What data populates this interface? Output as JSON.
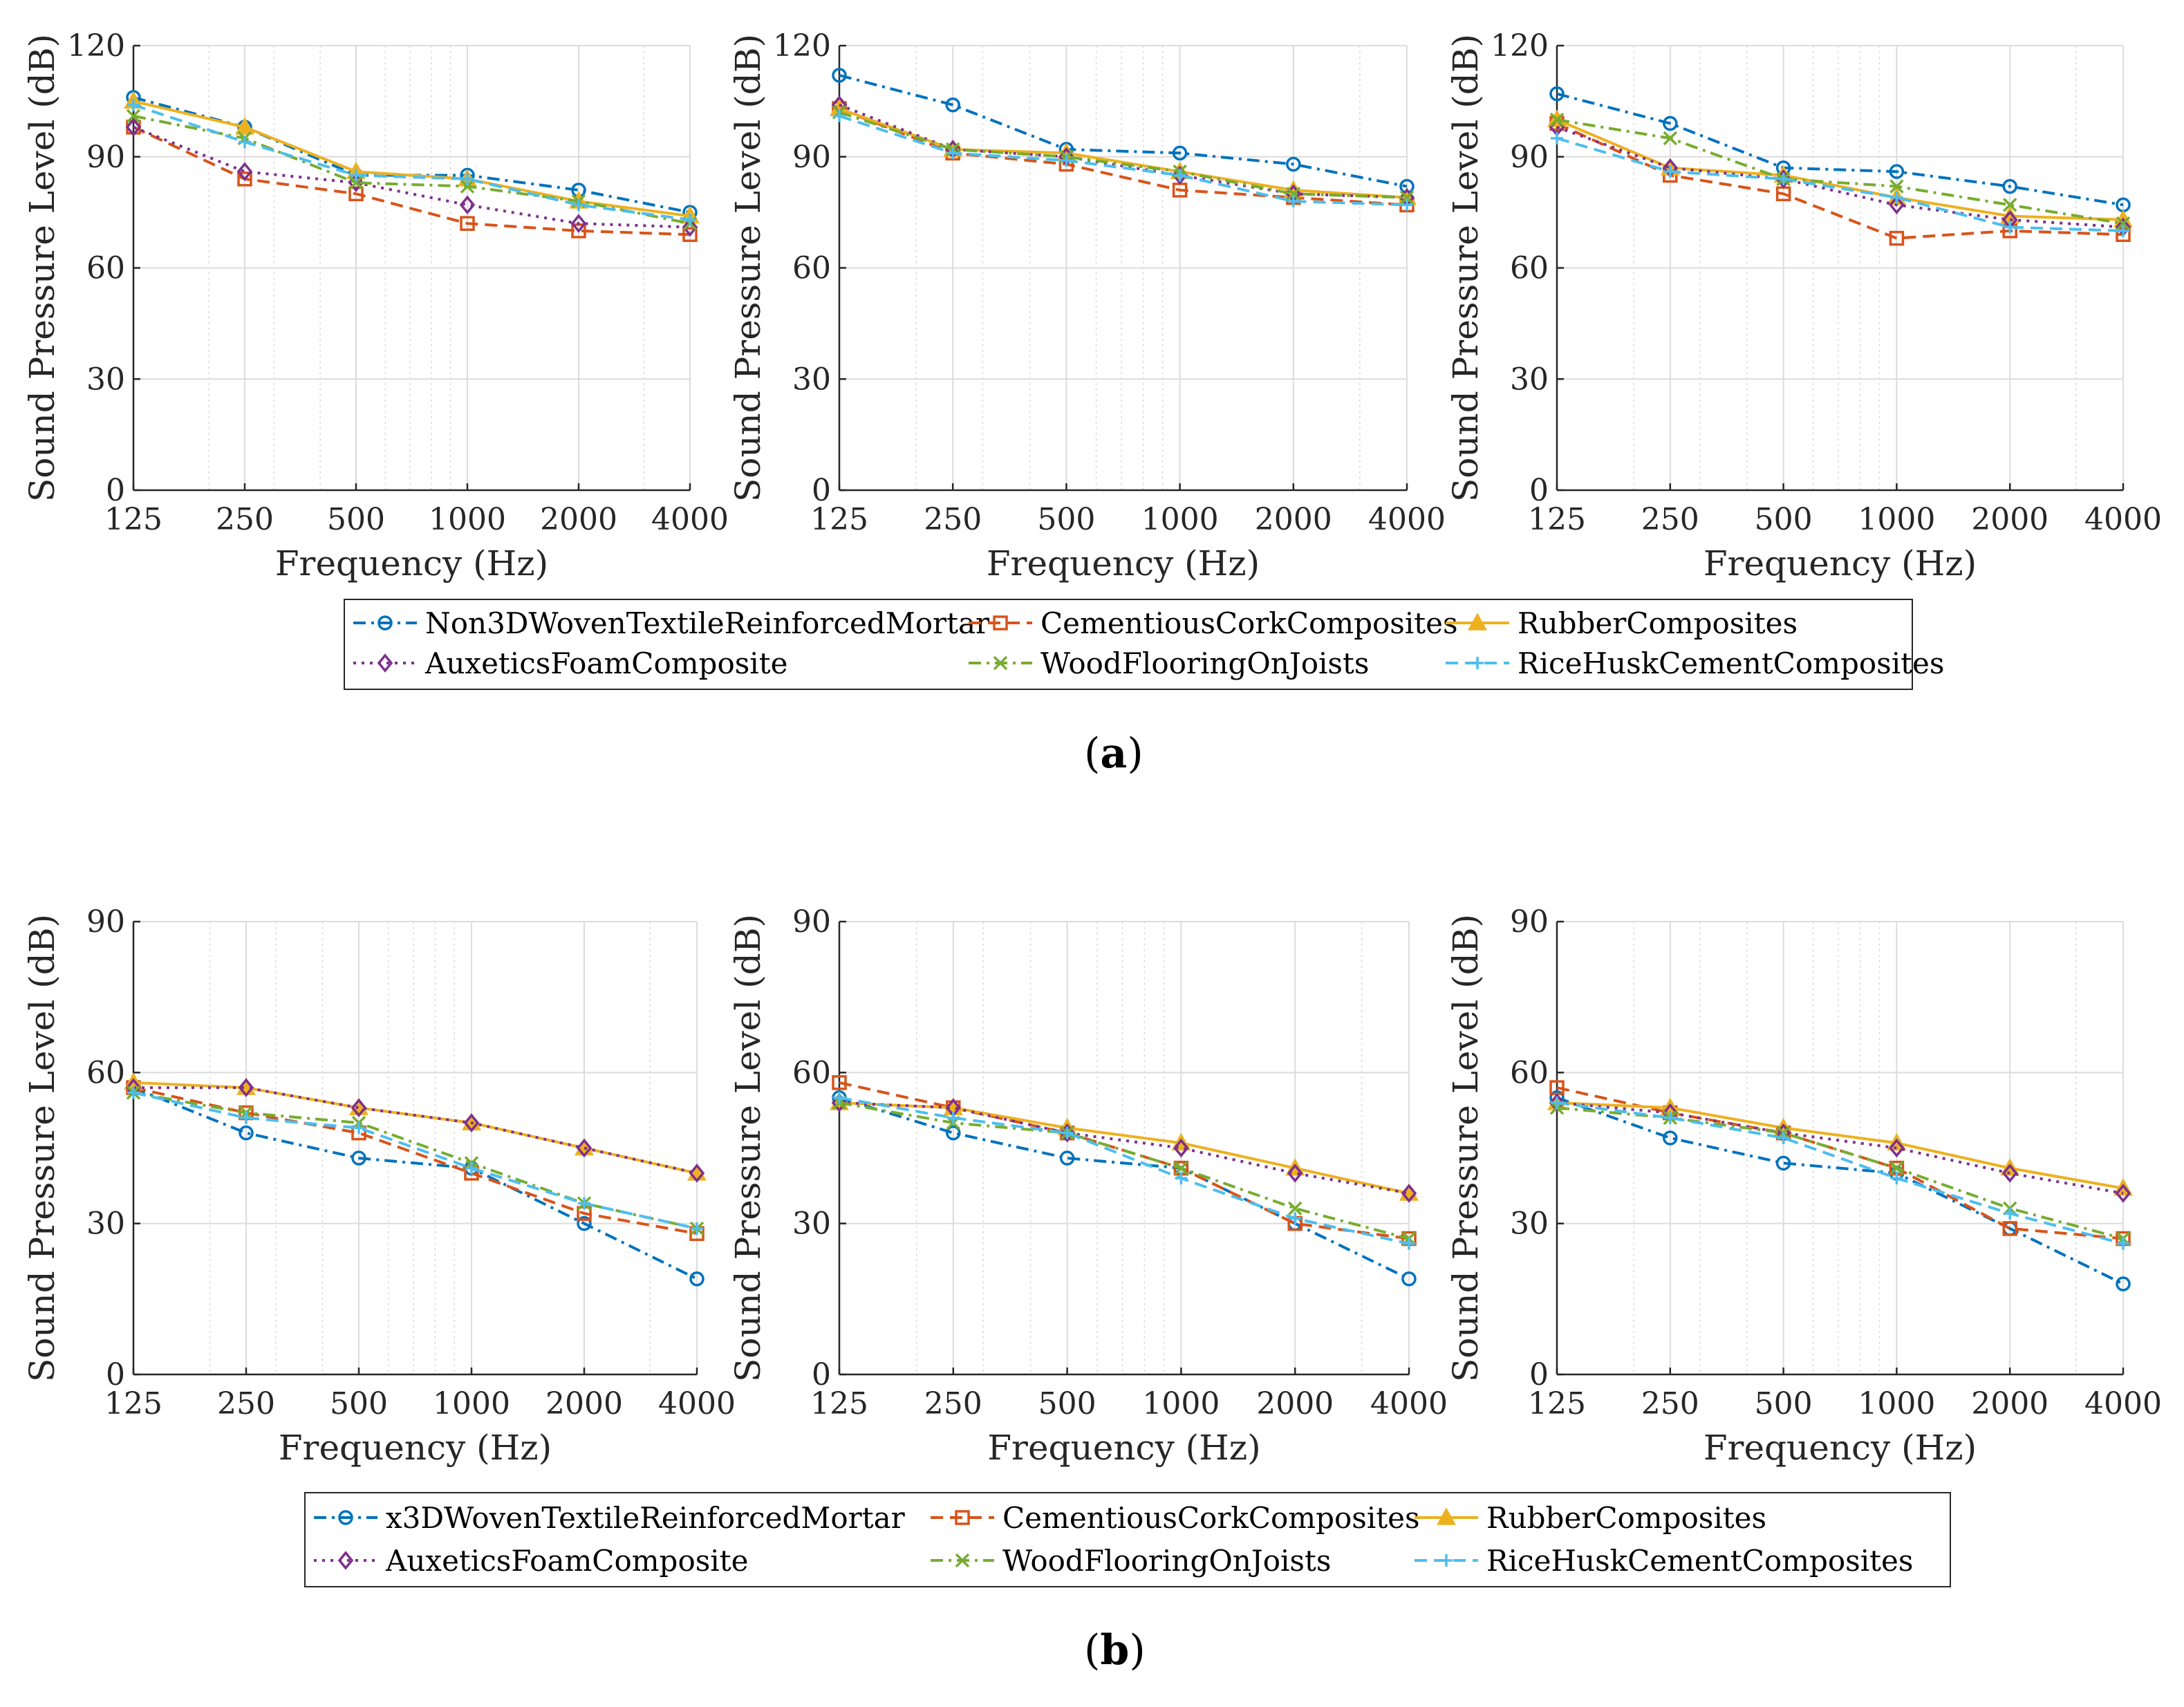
{
  "chart_data": [
    {
      "type": "line",
      "group": "a",
      "panel": 1,
      "x": [
        125,
        250,
        500,
        1000,
        2000,
        4000
      ],
      "xscale": "log",
      "xlabel": "Frequency (Hz)",
      "ylabel": "Sound Pressure Level (dB)",
      "ylim": [
        0,
        120
      ],
      "yticks": [
        0,
        30,
        60,
        90,
        120
      ],
      "grid": true,
      "series": [
        {
          "name": "Non3DWovenTextileReinforcedMortar",
          "values": [
            106,
            98,
            85,
            85,
            81,
            75
          ]
        },
        {
          "name": "CementiousCorkComposites",
          "values": [
            98,
            84,
            80,
            72,
            70,
            69
          ]
        },
        {
          "name": "RubberComposites",
          "values": [
            105,
            98,
            86,
            84,
            78,
            74
          ]
        },
        {
          "name": "AuxeticsFoamComposite",
          "values": [
            98,
            86,
            83,
            77,
            72,
            71
          ]
        },
        {
          "name": "WoodFlooringOnJoists",
          "values": [
            101,
            95,
            83,
            82,
            78,
            72
          ]
        },
        {
          "name": "RiceHuskCementComposites",
          "values": [
            104,
            94,
            85,
            84,
            77,
            73
          ]
        }
      ]
    },
    {
      "type": "line",
      "group": "a",
      "panel": 2,
      "x": [
        125,
        250,
        500,
        1000,
        2000,
        4000
      ],
      "xscale": "log",
      "xlabel": "Frequency (Hz)",
      "ylabel": "Sound Pressure Level (dB)",
      "ylim": [
        0,
        120
      ],
      "yticks": [
        0,
        30,
        60,
        90,
        120
      ],
      "grid": true,
      "series": [
        {
          "name": "Non3DWovenTextileReinforcedMortar",
          "values": [
            112,
            104,
            92,
            91,
            88,
            82
          ]
        },
        {
          "name": "CementiousCorkComposites",
          "values": [
            103,
            91,
            88,
            81,
            79,
            77
          ]
        },
        {
          "name": "RubberComposites",
          "values": [
            103,
            92,
            91,
            86,
            81,
            79
          ]
        },
        {
          "name": "AuxeticsFoamComposite",
          "values": [
            104,
            92,
            90,
            85,
            80,
            79
          ]
        },
        {
          "name": "WoodFlooringOnJoists",
          "values": [
            102,
            92,
            90,
            86,
            80,
            79
          ]
        },
        {
          "name": "RiceHuskCementComposites",
          "values": [
            101,
            91,
            89,
            85,
            78,
            77
          ]
        }
      ]
    },
    {
      "type": "line",
      "group": "a",
      "panel": 3,
      "x": [
        125,
        250,
        500,
        1000,
        2000,
        4000
      ],
      "xscale": "log",
      "xlabel": "Frequency (Hz)",
      "ylabel": "Sound Pressure Level (dB)",
      "ylim": [
        0,
        120
      ],
      "yticks": [
        0,
        30,
        60,
        90,
        120
      ],
      "grid": true,
      "series": [
        {
          "name": "Non3DWovenTextileReinforcedMortar",
          "values": [
            107,
            99,
            87,
            86,
            82,
            77
          ]
        },
        {
          "name": "CementiousCorkComposites",
          "values": [
            99,
            85,
            80,
            68,
            70,
            69
          ]
        },
        {
          "name": "RubberComposites",
          "values": [
            100,
            87,
            85,
            79,
            74,
            73
          ]
        },
        {
          "name": "AuxeticsFoamComposite",
          "values": [
            98,
            87,
            84,
            77,
            73,
            71
          ]
        },
        {
          "name": "WoodFlooringOnJoists",
          "values": [
            100,
            95,
            84,
            82,
            77,
            72
          ]
        },
        {
          "name": "RiceHuskCementComposites",
          "values": [
            95,
            86,
            84,
            79,
            71,
            70
          ]
        }
      ]
    },
    {
      "type": "line",
      "group": "b",
      "panel": 1,
      "x": [
        125,
        250,
        500,
        1000,
        2000,
        4000
      ],
      "xscale": "log",
      "xlabel": "Frequency (Hz)",
      "ylabel": "Sound Pressure Level (dB)",
      "ylim": [
        0,
        90
      ],
      "yticks": [
        0,
        30,
        60,
        90
      ],
      "grid": true,
      "series": [
        {
          "name": "x3DWovenTextileReinforcedMortar",
          "values": [
            57,
            48,
            43,
            41,
            30,
            19
          ]
        },
        {
          "name": "CementiousCorkComposites",
          "values": [
            57,
            52,
            48,
            40,
            32,
            28
          ]
        },
        {
          "name": "RubberComposites",
          "values": [
            58,
            57,
            53,
            50,
            45,
            40
          ]
        },
        {
          "name": "AuxeticsFoamComposite",
          "values": [
            57,
            57,
            53,
            50,
            45,
            40
          ]
        },
        {
          "name": "WoodFlooringOnJoists",
          "values": [
            56,
            52,
            50,
            42,
            34,
            29
          ]
        },
        {
          "name": "RiceHuskCementComposites",
          "values": [
            56,
            51,
            49,
            41,
            34,
            29
          ]
        }
      ]
    },
    {
      "type": "line",
      "group": "b",
      "panel": 2,
      "x": [
        125,
        250,
        500,
        1000,
        2000,
        4000
      ],
      "xscale": "log",
      "xlabel": "Frequency (Hz)",
      "ylabel": "Sound Pressure Level (dB)",
      "ylim": [
        0,
        90
      ],
      "yticks": [
        0,
        30,
        60,
        90
      ],
      "grid": true,
      "series": [
        {
          "name": "x3DWovenTextileReinforcedMortar",
          "values": [
            55,
            48,
            43,
            41,
            30,
            19
          ]
        },
        {
          "name": "CementiousCorkComposites",
          "values": [
            58,
            53,
            48,
            41,
            30,
            27
          ]
        },
        {
          "name": "RubberComposites",
          "values": [
            54,
            53,
            49,
            46,
            41,
            36
          ]
        },
        {
          "name": "AuxeticsFoamComposite",
          "values": [
            54,
            53,
            48,
            45,
            40,
            36
          ]
        },
        {
          "name": "WoodFlooringOnJoists",
          "values": [
            54,
            50,
            48,
            41,
            33,
            27
          ]
        },
        {
          "name": "RiceHuskCementComposites",
          "values": [
            55,
            51,
            48,
            39,
            31,
            26
          ]
        }
      ]
    },
    {
      "type": "line",
      "group": "b",
      "panel": 3,
      "x": [
        125,
        250,
        500,
        1000,
        2000,
        4000
      ],
      "xscale": "log",
      "xlabel": "Frequency (Hz)",
      "ylabel": "Sound Pressure Level (dB)",
      "ylim": [
        0,
        90
      ],
      "yticks": [
        0,
        30,
        60,
        90
      ],
      "grid": true,
      "series": [
        {
          "name": "x3DWovenTextileReinforcedMortar",
          "values": [
            55,
            47,
            42,
            40,
            29,
            18
          ]
        },
        {
          "name": "CementiousCorkComposites",
          "values": [
            57,
            52,
            48,
            41,
            29,
            27
          ]
        },
        {
          "name": "RubberComposites",
          "values": [
            54,
            53,
            49,
            46,
            41,
            37
          ]
        },
        {
          "name": "AuxeticsFoamComposite",
          "values": [
            54,
            52,
            48,
            45,
            40,
            36
          ]
        },
        {
          "name": "WoodFlooringOnJoists",
          "values": [
            53,
            51,
            48,
            41,
            33,
            27
          ]
        },
        {
          "name": "RiceHuskCementComposites",
          "values": [
            54,
            51,
            47,
            39,
            32,
            26
          ]
        }
      ]
    }
  ],
  "styles": {
    "Non3DWovenTextileReinforcedMortar": {
      "color": "#0072BD",
      "dash": "dashdot",
      "marker": "circle"
    },
    "x3DWovenTextileReinforcedMortar": {
      "color": "#0072BD",
      "dash": "dashdot",
      "marker": "circle"
    },
    "CementiousCorkComposites": {
      "color": "#D95319",
      "dash": "dashed",
      "marker": "square"
    },
    "RubberComposites": {
      "color": "#EDB120",
      "dash": "solid",
      "marker": "triangle"
    },
    "AuxeticsFoamComposite": {
      "color": "#7E2F8E",
      "dash": "dotted",
      "marker": "diamond"
    },
    "WoodFlooringOnJoists": {
      "color": "#77AC30",
      "dash": "dashdot",
      "marker": "x"
    },
    "RiceHuskCementComposites": {
      "color": "#4DBEEE",
      "dash": "dashed",
      "marker": "plus"
    }
  },
  "x_tick_labels": [
    "125",
    "250",
    "500",
    "1000",
    "2000",
    "4000"
  ],
  "legends": {
    "a": [
      "Non3DWovenTextileReinforcedMortar",
      "CementiousCorkComposites",
      "RubberComposites",
      "AuxeticsFoamComposite",
      "WoodFlooringOnJoists",
      "RiceHuskCementComposites"
    ],
    "b": [
      "x3DWovenTextileReinforcedMortar",
      "CementiousCorkComposites",
      "RubberComposites",
      "AuxeticsFoamComposite",
      "WoodFlooringOnJoists",
      "RiceHuskCementComposites"
    ]
  },
  "panel_labels": {
    "a": "a",
    "b": "b"
  }
}
